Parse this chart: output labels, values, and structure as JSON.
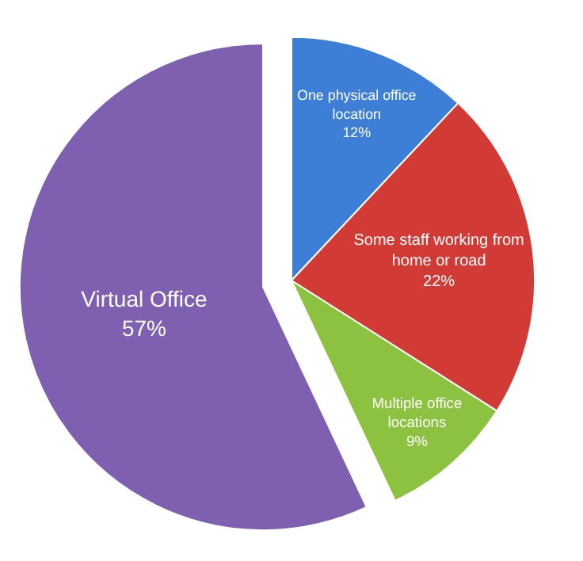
{
  "chart_data": {
    "type": "pie",
    "categories": [
      "One physical office location",
      "Some staff working from home or road",
      "Multiple office locations",
      "Virtual Office"
    ],
    "values": [
      12,
      22,
      9,
      57
    ],
    "value_labels": [
      "12%",
      "22%",
      "9%",
      "57%"
    ],
    "colors": [
      "#3d7fd6",
      "#d13a35",
      "#8dc140",
      "#7f5fb0"
    ],
    "legend": false
  }
}
